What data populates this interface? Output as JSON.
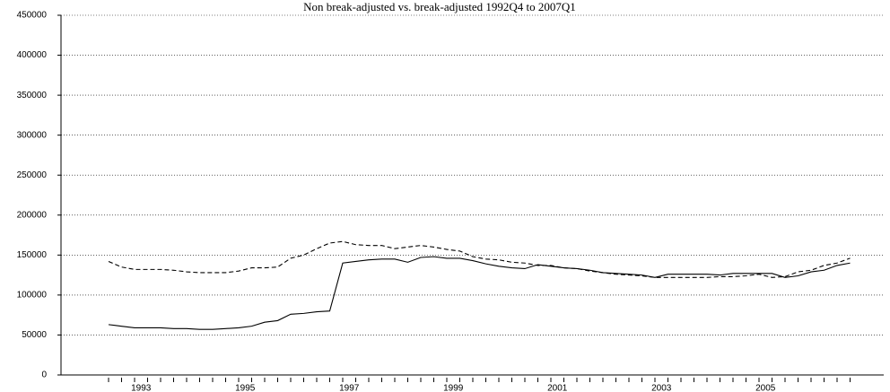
{
  "chart_data": {
    "type": "line",
    "title": "Non break-adjusted vs. break-adjusted 1992Q4 to 2007Q1",
    "categories": [
      null,
      null,
      "1993",
      null,
      null,
      null,
      null,
      null,
      null,
      null,
      "1995",
      null,
      null,
      null,
      null,
      null,
      null,
      null,
      "1997",
      null,
      null,
      null,
      null,
      null,
      null,
      null,
      "1999",
      null,
      null,
      null,
      null,
      null,
      null,
      null,
      "2001",
      null,
      null,
      null,
      null,
      null,
      null,
      null,
      "2003",
      null,
      null,
      null,
      null,
      null,
      null,
      null,
      "2005",
      null,
      null,
      null,
      null,
      null,
      null,
      null
    ],
    "series": [
      {
        "color": "#000000",
        "line_style": "solid",
        "values": [
          63000,
          61000,
          59000,
          59000,
          59000,
          58000,
          58000,
          57000,
          57000,
          58000,
          59000,
          61000,
          66000,
          68000,
          76000,
          77000,
          79000,
          80000,
          140000,
          142000,
          144000,
          145000,
          145000,
          141000,
          147000,
          148000,
          146000,
          146000,
          143000,
          139000,
          136000,
          134000,
          133000,
          138000,
          136000,
          134000,
          133000,
          131000,
          128000,
          127000,
          126000,
          125000,
          122000,
          126000,
          126000,
          126000,
          126000,
          125000,
          127000,
          127000,
          127000,
          127000,
          122000,
          124000,
          129000,
          131000,
          137000,
          140000
        ]
      },
      {
        "color": "#000000",
        "line_style": "dashed",
        "values": [
          142000,
          135000,
          132000,
          132000,
          132000,
          131000,
          129000,
          128000,
          128000,
          128000,
          130000,
          134000,
          134000,
          135000,
          146000,
          150000,
          158000,
          165000,
          167000,
          163000,
          162000,
          162000,
          158000,
          160000,
          162000,
          160000,
          157000,
          155000,
          148000,
          145000,
          144000,
          141000,
          140000,
          137000,
          137000,
          134000,
          133000,
          130000,
          128000,
          126000,
          125000,
          124000,
          122000,
          122000,
          122000,
          122000,
          122000,
          123000,
          123000,
          124000,
          126000,
          122000,
          123000,
          129000,
          131000,
          137000,
          140000,
          146000
        ]
      }
    ],
    "ylim": [
      0,
      450000
    ],
    "yticks": [
      0,
      50000,
      100000,
      150000,
      200000,
      250000,
      300000,
      350000,
      400000,
      450000
    ],
    "grid": true
  }
}
